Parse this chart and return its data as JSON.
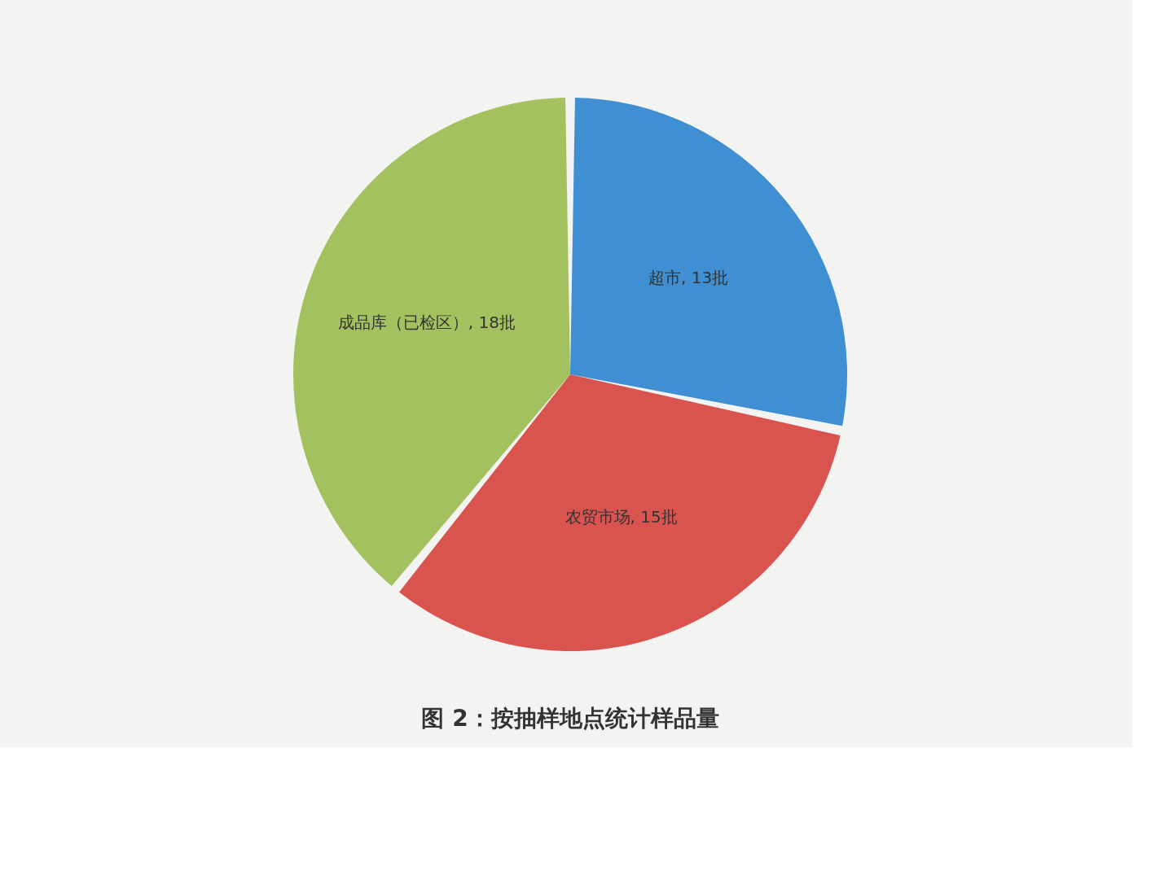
{
  "chart_data": {
    "type": "pie",
    "title": "图 2：按抽样地点统计样品量",
    "categories": [
      "超市",
      "农贸市场",
      "成品库（已检区）"
    ],
    "values": [
      13,
      15,
      18
    ],
    "colors": [
      "#3f8fd2",
      "#d9534f",
      "#a3c25f"
    ],
    "value_labels": [
      "13批",
      "15批",
      "18批"
    ]
  }
}
